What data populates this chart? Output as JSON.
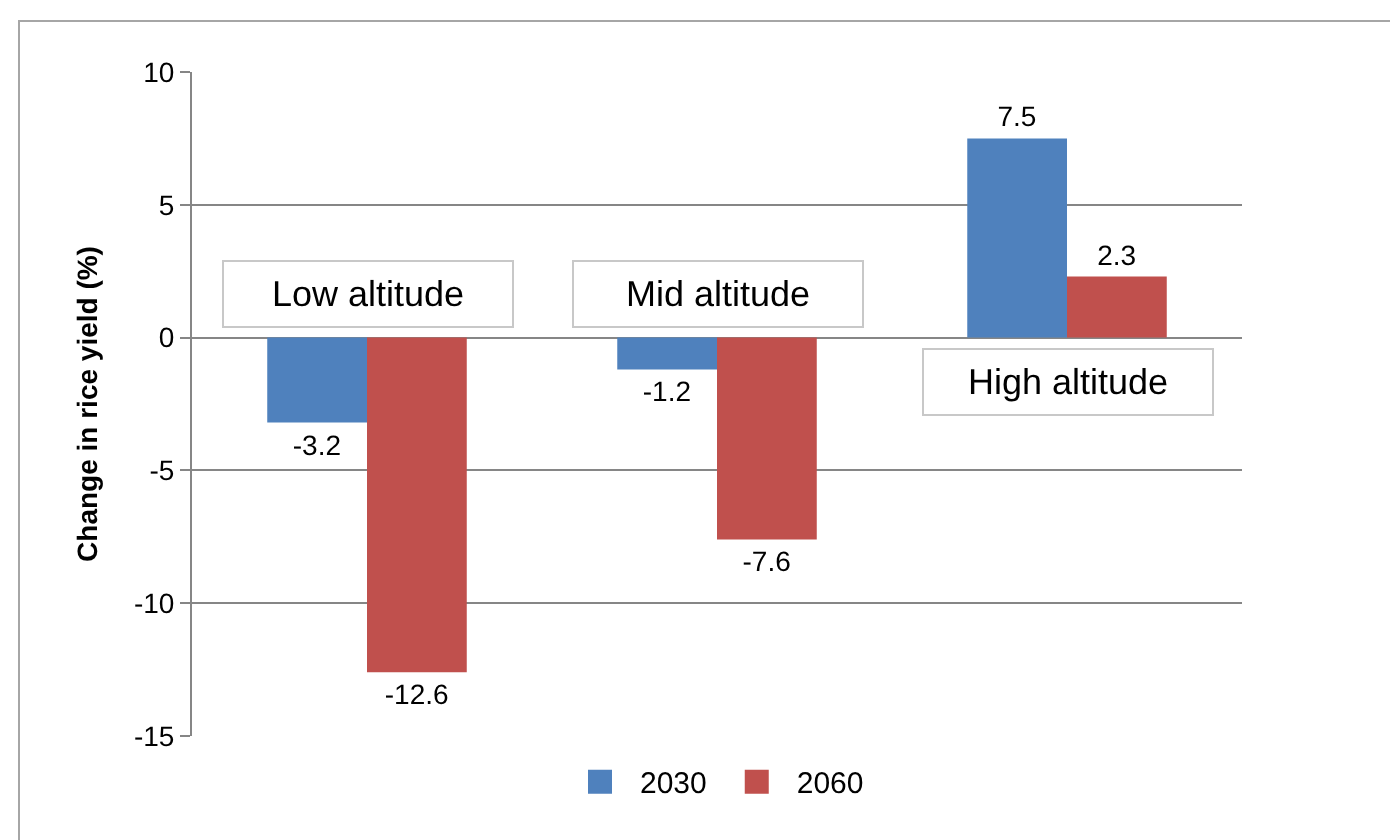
{
  "chart_data": {
    "type": "bar",
    "categories": [
      "Low altitude",
      "Mid altitude",
      "High altitude"
    ],
    "series": [
      {
        "name": "2030",
        "color": "#4f81bd",
        "values": [
          -3.2,
          -1.2,
          7.5
        ]
      },
      {
        "name": "2060",
        "color": "#c0504d",
        "values": [
          -12.6,
          -7.6,
          2.3
        ]
      }
    ],
    "ylabel": "Change in rice yield (%)",
    "ylim": [
      -15,
      10
    ],
    "yticks": [
      -15,
      -10,
      -5,
      0,
      5,
      10
    ],
    "grid": "y",
    "legend": "bottom",
    "data_labels": true,
    "tick_labels": "y"
  }
}
